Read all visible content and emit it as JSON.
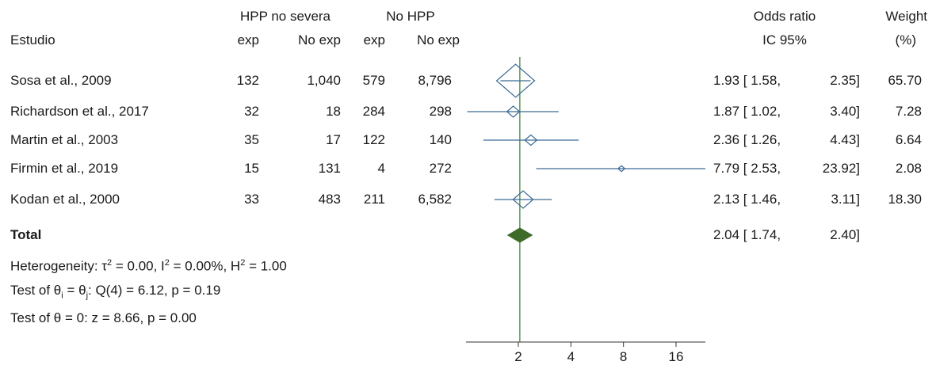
{
  "header": {
    "col_study": "Estudio",
    "group1": "HPP no severa",
    "group2": "No HPP",
    "exp": "exp",
    "noexp": "No exp",
    "or_title": "Odds ratio",
    "ci_title": "IC 95%",
    "weight_title": "Weight",
    "weight_unit": "(%)"
  },
  "rows": [
    {
      "study": "Sosa et al., 2009",
      "a": "132",
      "b": "1,040",
      "c": "579",
      "d": "8,796",
      "or_text": "1.93 [ 1.58,",
      "hi_text": "2.35]",
      "weight": "65.70"
    },
    {
      "study": "Richardson et al., 2017",
      "a": "32",
      "b": "18",
      "c": "284",
      "d": "298",
      "or_text": "1.87 [ 1.02,",
      "hi_text": "3.40]",
      "weight": "7.28"
    },
    {
      "study": "Martin et al., 2003",
      "a": "35",
      "b": "17",
      "c": "122",
      "d": "140",
      "or_text": "2.36 [ 1.26,",
      "hi_text": "4.43]",
      "weight": "6.64"
    },
    {
      "study": "Firmin et al., 2019",
      "a": "15",
      "b": "131",
      "c": "4",
      "d": "272",
      "or_text": "7.79 [ 2.53,",
      "hi_text": "23.92]",
      "weight": "2.08"
    },
    {
      "study": "Kodan et al., 2000",
      "a": "33",
      "b": "483",
      "c": "211",
      "d": "6,582",
      "or_text": "2.13 [ 1.46,",
      "hi_text": "3.11]",
      "weight": "18.30"
    }
  ],
  "total": {
    "label": "Total",
    "or_text": "2.04 [ 1.74,",
    "hi_text": "2.40]"
  },
  "stats": {
    "het_a": "Heterogeneity: τ",
    "het_b": " = 0.00, I",
    "het_c": " = 0.00%, H",
    "het_d": " = 1.00",
    "sq": "2",
    "test1_a": "Test of θ",
    "test1_sub_i": "i",
    "test1_b": " = θ",
    "test1_sub_j": "j",
    "test1_c": ": Q(4) = 6.12, p = 0.19",
    "test2": "Test of θ = 0: z = 8.66, p = 0.00"
  },
  "chart_data": {
    "type": "forest",
    "scale": "log2",
    "x_ticks": [
      2,
      4,
      8,
      16
    ],
    "x_tick_labels": [
      "2",
      "4",
      "8",
      "16"
    ],
    "xlim": [
      1,
      24
    ],
    "reference_line": 2.04,
    "studies": [
      {
        "label": "Sosa et al., 2009",
        "or": 1.93,
        "lo": 1.58,
        "hi": 2.35,
        "weight": 65.7
      },
      {
        "label": "Richardson et al., 2017",
        "or": 1.87,
        "lo": 1.02,
        "hi": 3.4,
        "weight": 7.28
      },
      {
        "label": "Martin et al., 2003",
        "or": 2.36,
        "lo": 1.26,
        "hi": 4.43,
        "weight": 6.64
      },
      {
        "label": "Firmin et al., 2019",
        "or": 7.79,
        "lo": 2.53,
        "hi": 23.92,
        "weight": 2.08
      },
      {
        "label": "Kodan et al., 2000",
        "or": 2.13,
        "lo": 1.46,
        "hi": 3.11,
        "weight": 18.3
      }
    ],
    "overall": {
      "label": "Total",
      "or": 2.04,
      "lo": 1.74,
      "hi": 2.4
    },
    "colors": {
      "marker": "#3a6a94",
      "overall": "#3f6b2a",
      "ref_line": "#3f8a3a",
      "axis": "#333333"
    }
  }
}
